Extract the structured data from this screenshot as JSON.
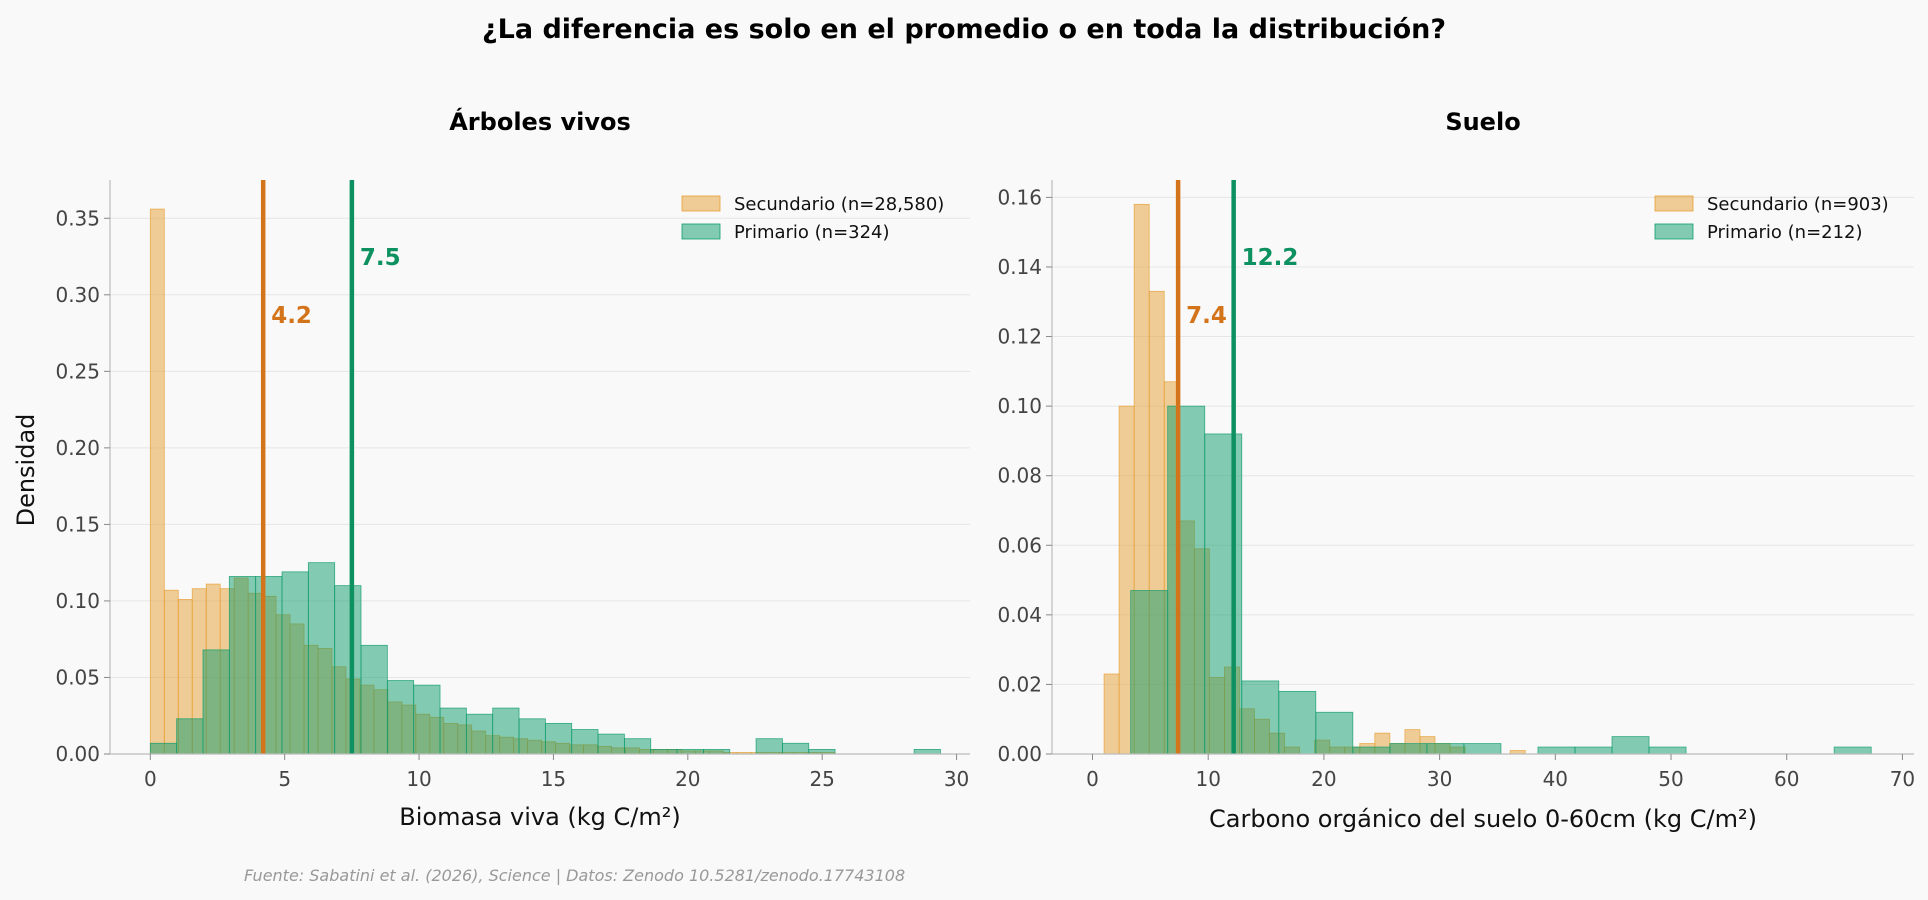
{
  "title": "¿La diferencia es solo en el promedio o en toda la distribución?",
  "ylabel": "Densidad",
  "source": "Fuente: Sabatini et al. (2026), Science | Datos: Zenodo 10.5281/zenodo.17743108",
  "colors": {
    "secondary": "#E69F33",
    "primary": "#0E9B6B",
    "mean_secondary": "#D4741A",
    "mean_primary": "#0E9161",
    "background": "#f9f9f9"
  },
  "chart_data": [
    {
      "type": "histogram",
      "title": "Árboles vivos",
      "xlabel": "Biomasa viva (kg C/m²)",
      "xlim": [
        -1.5,
        30.5
      ],
      "ylim": [
        0,
        0.375
      ],
      "xticks": [
        0,
        5,
        10,
        15,
        20,
        25,
        30
      ],
      "yticks": [
        0.0,
        0.05,
        0.1,
        0.15,
        0.2,
        0.25,
        0.3,
        0.35
      ],
      "ytick_decimals": 2,
      "legend_position": "top-right",
      "series": [
        {
          "name": "Secundario",
          "legend_label": "Secundario (n=28,580)",
          "bin_edges": [
            0,
            0.52,
            1.04,
            1.56,
            2.08,
            2.6,
            3.12,
            3.64,
            4.16,
            4.68,
            5.2,
            5.72,
            6.24,
            6.76,
            7.28,
            7.8,
            8.32,
            8.84,
            9.36,
            9.88,
            10.4,
            10.92,
            11.44,
            11.96,
            12.48,
            13.0,
            13.52,
            14.04,
            14.56,
            15.08,
            15.6,
            16.12,
            16.64,
            17.16,
            17.68,
            18.2,
            18.72,
            19.24,
            19.76,
            20.28,
            20.8,
            21.32,
            21.84,
            22.36,
            22.88,
            23.4,
            23.92,
            24.44,
            24.96,
            25.48
          ],
          "densities": [
            0.356,
            0.107,
            0.101,
            0.108,
            0.111,
            0.108,
            0.115,
            0.105,
            0.103,
            0.091,
            0.085,
            0.071,
            0.069,
            0.057,
            0.049,
            0.045,
            0.042,
            0.034,
            0.032,
            0.026,
            0.024,
            0.02,
            0.019,
            0.015,
            0.012,
            0.011,
            0.01,
            0.009,
            0.008,
            0.007,
            0.006,
            0.006,
            0.005,
            0.004,
            0.004,
            0.003,
            0.003,
            0.003,
            0.002,
            0.002,
            0.002,
            0.001,
            0.001,
            0.001,
            0.001,
            0.001,
            0.001,
            0.001,
            0.001
          ]
        },
        {
          "name": "Primario",
          "legend_label": "Primario (n=324)",
          "bin_edges": [
            0,
            0.98,
            1.96,
            2.94,
            3.92,
            4.9,
            5.88,
            6.86,
            7.84,
            8.82,
            9.8,
            10.78,
            11.76,
            12.74,
            13.72,
            14.7,
            15.68,
            16.66,
            17.64,
            18.62,
            19.6,
            20.58,
            21.56,
            22.54,
            23.52,
            24.5,
            25.48,
            26.46,
            27.44,
            28.42,
            29.4
          ],
          "densities": [
            0.007,
            0.023,
            0.068,
            0.116,
            0.116,
            0.119,
            0.125,
            0.11,
            0.071,
            0.048,
            0.045,
            0.03,
            0.026,
            0.03,
            0.023,
            0.02,
            0.016,
            0.013,
            0.01,
            0.003,
            0.003,
            0.003,
            0.0,
            0.01,
            0.007,
            0.003,
            0.0,
            0.0,
            0.0,
            0.003
          ]
        }
      ],
      "means": [
        {
          "series": "Secundario",
          "value": 4.2,
          "label": "4.2"
        },
        {
          "series": "Primario",
          "value": 7.5,
          "label": "7.5"
        }
      ]
    },
    {
      "type": "histogram",
      "title": "Suelo",
      "xlabel": "Carbono orgánico del suelo 0-60cm (kg C/m²)",
      "xlim": [
        -3.5,
        71
      ],
      "ylim": [
        0,
        0.165
      ],
      "xticks": [
        0,
        10,
        20,
        30,
        40,
        50,
        60,
        70
      ],
      "yticks": [
        0.0,
        0.02,
        0.04,
        0.06,
        0.08,
        0.1,
        0.12,
        0.14,
        0.16
      ],
      "ytick_decimals": 2,
      "legend_position": "top-right",
      "series": [
        {
          "name": "Secundario",
          "legend_label": "Secundario (n=903)",
          "bin_edges": [
            1.0,
            2.3,
            3.6,
            4.9,
            6.2,
            7.5,
            8.8,
            10.1,
            11.4,
            12.7,
            14.0,
            15.3,
            16.6,
            17.9,
            19.2,
            20.5,
            21.8,
            23.1,
            24.4,
            25.7,
            27.0,
            28.3,
            29.6,
            30.9,
            32.2,
            33.5,
            34.8,
            36.1,
            37.4,
            38.7
          ],
          "densities": [
            0.023,
            0.1,
            0.158,
            0.133,
            0.107,
            0.067,
            0.059,
            0.022,
            0.025,
            0.013,
            0.01,
            0.006,
            0.002,
            0.0,
            0.004,
            0.002,
            0.002,
            0.003,
            0.006,
            0.003,
            0.007,
            0.005,
            0.003,
            0.002,
            0.0,
            0.0,
            0.0,
            0.001,
            0.0
          ]
        },
        {
          "name": "Primario",
          "legend_label": "Primario (n=212)",
          "bin_edges": [
            3.3,
            6.5,
            9.7,
            12.9,
            16.1,
            19.3,
            22.5,
            25.7,
            28.9,
            32.1,
            35.3,
            38.5,
            41.7,
            44.9,
            48.1,
            51.3,
            54.5,
            57.7,
            60.9,
            64.1,
            67.3
          ],
          "densities": [
            0.047,
            0.1,
            0.092,
            0.021,
            0.018,
            0.012,
            0.002,
            0.003,
            0.003,
            0.003,
            0.0,
            0.002,
            0.002,
            0.005,
            0.002,
            0.0,
            0.0,
            0.0,
            0.0,
            0.002
          ]
        }
      ],
      "means": [
        {
          "series": "Secundario",
          "value": 7.4,
          "label": "7.4"
        },
        {
          "series": "Primario",
          "value": 12.2,
          "label": "12.2"
        }
      ]
    }
  ]
}
